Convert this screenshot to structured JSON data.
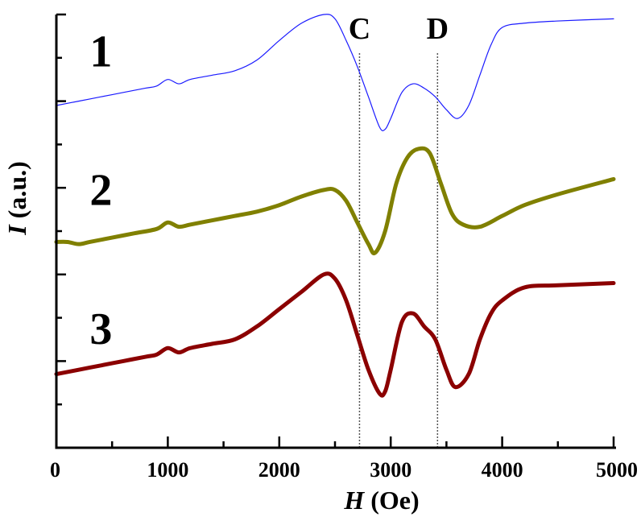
{
  "chart_data": {
    "type": "line",
    "xlabel_italic": "H",
    "xlabel_rest": " (Oe)",
    "ylabel_italic": "I",
    "ylabel_rest": " (a.u.)",
    "xlim": [
      0,
      5000
    ],
    "ylim": [
      0,
      10
    ],
    "x_ticks": [
      0,
      1000,
      2000,
      3000,
      4000,
      5000
    ],
    "y_major_ticks": [
      2,
      4,
      6,
      8,
      10
    ],
    "y_minor_ticks": [
      1,
      3,
      5,
      7,
      9
    ],
    "reference_lines": [
      {
        "label": "C",
        "x": 2720
      },
      {
        "label": "D",
        "x": 3420
      }
    ],
    "series": [
      {
        "name": "1",
        "color": "#1a1aff",
        "thick": false,
        "label_pos": [
          400,
          8.8
        ],
        "points": [
          [
            0,
            7.9
          ],
          [
            200,
            8.0
          ],
          [
            400,
            8.1
          ],
          [
            600,
            8.2
          ],
          [
            800,
            8.3
          ],
          [
            900,
            8.35
          ],
          [
            1000,
            8.5
          ],
          [
            1100,
            8.4
          ],
          [
            1200,
            8.5
          ],
          [
            1400,
            8.6
          ],
          [
            1600,
            8.7
          ],
          [
            1800,
            8.95
          ],
          [
            2000,
            9.4
          ],
          [
            2200,
            9.8
          ],
          [
            2400,
            10.0
          ],
          [
            2500,
            9.9
          ],
          [
            2600,
            9.4
          ],
          [
            2700,
            8.8
          ],
          [
            2800,
            8.1
          ],
          [
            2900,
            7.4
          ],
          [
            2950,
            7.35
          ],
          [
            3000,
            7.6
          ],
          [
            3100,
            8.2
          ],
          [
            3200,
            8.4
          ],
          [
            3300,
            8.3
          ],
          [
            3400,
            8.1
          ],
          [
            3500,
            7.8
          ],
          [
            3600,
            7.6
          ],
          [
            3700,
            7.9
          ],
          [
            3800,
            8.6
          ],
          [
            3900,
            9.3
          ],
          [
            4000,
            9.7
          ],
          [
            4200,
            9.8
          ],
          [
            4500,
            9.85
          ],
          [
            5000,
            9.9
          ]
        ]
      },
      {
        "name": "2",
        "color": "#808000",
        "thick": true,
        "label_pos": [
          400,
          5.6
        ],
        "points": [
          [
            0,
            4.75
          ],
          [
            100,
            4.75
          ],
          [
            200,
            4.7
          ],
          [
            300,
            4.75
          ],
          [
            500,
            4.85
          ],
          [
            700,
            4.95
          ],
          [
            900,
            5.05
          ],
          [
            1000,
            5.2
          ],
          [
            1100,
            5.1
          ],
          [
            1200,
            5.15
          ],
          [
            1400,
            5.25
          ],
          [
            1600,
            5.35
          ],
          [
            1800,
            5.45
          ],
          [
            2000,
            5.6
          ],
          [
            2200,
            5.8
          ],
          [
            2400,
            5.95
          ],
          [
            2500,
            5.95
          ],
          [
            2600,
            5.7
          ],
          [
            2700,
            5.2
          ],
          [
            2800,
            4.7
          ],
          [
            2860,
            4.5
          ],
          [
            2950,
            5.0
          ],
          [
            3050,
            6.1
          ],
          [
            3150,
            6.7
          ],
          [
            3250,
            6.9
          ],
          [
            3350,
            6.8
          ],
          [
            3450,
            6.1
          ],
          [
            3550,
            5.4
          ],
          [
            3650,
            5.15
          ],
          [
            3800,
            5.1
          ],
          [
            4000,
            5.35
          ],
          [
            4200,
            5.6
          ],
          [
            4500,
            5.85
          ],
          [
            5000,
            6.2
          ]
        ]
      },
      {
        "name": "3",
        "color": "#8b0000",
        "thick": true,
        "label_pos": [
          400,
          2.4
        ],
        "points": [
          [
            0,
            1.7
          ],
          [
            200,
            1.8
          ],
          [
            400,
            1.9
          ],
          [
            600,
            2.0
          ],
          [
            800,
            2.1
          ],
          [
            900,
            2.15
          ],
          [
            1000,
            2.3
          ],
          [
            1100,
            2.2
          ],
          [
            1200,
            2.3
          ],
          [
            1400,
            2.4
          ],
          [
            1600,
            2.5
          ],
          [
            1800,
            2.8
          ],
          [
            2000,
            3.2
          ],
          [
            2200,
            3.6
          ],
          [
            2400,
            4.0
          ],
          [
            2500,
            3.9
          ],
          [
            2600,
            3.4
          ],
          [
            2700,
            2.6
          ],
          [
            2800,
            1.8
          ],
          [
            2900,
            1.25
          ],
          [
            2950,
            1.3
          ],
          [
            3000,
            1.8
          ],
          [
            3100,
            2.9
          ],
          [
            3200,
            3.1
          ],
          [
            3300,
            2.8
          ],
          [
            3400,
            2.5
          ],
          [
            3500,
            1.8
          ],
          [
            3580,
            1.4
          ],
          [
            3700,
            1.7
          ],
          [
            3800,
            2.5
          ],
          [
            3900,
            3.1
          ],
          [
            4000,
            3.4
          ],
          [
            4200,
            3.7
          ],
          [
            4500,
            3.75
          ],
          [
            5000,
            3.8
          ]
        ]
      }
    ]
  }
}
